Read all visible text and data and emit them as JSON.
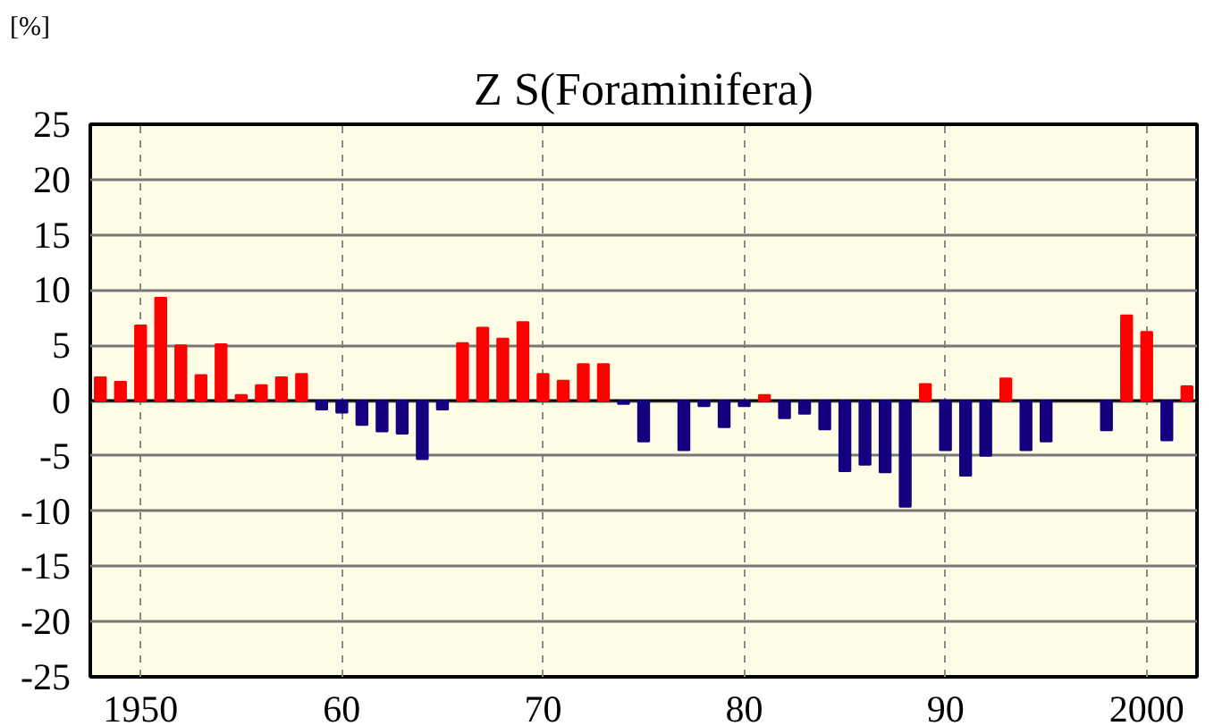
{
  "chart_data": {
    "type": "bar",
    "title": "Z S(Foraminifera)",
    "ylabel": "[%]",
    "x": [
      1948,
      1949,
      1950,
      1951,
      1952,
      1953,
      1954,
      1955,
      1956,
      1957,
      1958,
      1959,
      1960,
      1961,
      1962,
      1963,
      1964,
      1965,
      1966,
      1967,
      1968,
      1969,
      1970,
      1971,
      1972,
      1973,
      1974,
      1975,
      1976,
      1977,
      1978,
      1979,
      1980,
      1981,
      1982,
      1983,
      1984,
      1985,
      1986,
      1987,
      1988,
      1989,
      1990,
      1991,
      1992,
      1993,
      1994,
      1995,
      1996,
      1997,
      1998,
      1999,
      2000,
      2001,
      2002
    ],
    "values": [
      2.1,
      1.7,
      6.8,
      9.3,
      5.0,
      2.3,
      5.1,
      0.5,
      1.4,
      2.1,
      2.4,
      -0.8,
      -1.1,
      -2.2,
      -2.8,
      -3.0,
      -5.3,
      -0.8,
      5.2,
      6.6,
      5.6,
      7.1,
      2.4,
      1.8,
      3.3,
      3.3,
      -0.3,
      -3.7,
      null,
      -4.5,
      -0.5,
      -2.4,
      -0.5,
      0.5,
      -1.6,
      -1.2,
      -2.6,
      -6.4,
      -5.8,
      -6.5,
      -9.6,
      1.5,
      -4.5,
      -6.8,
      -5.0,
      2.0,
      -4.5,
      -3.7,
      null,
      null,
      -2.7,
      7.7,
      6.2,
      -3.6,
      1.3
    ],
    "colors": [
      "#ff0000",
      "#ff0000",
      "#ff0000",
      "#ff0000",
      "#ff0000",
      "#ff0000",
      "#ff0000",
      "#ff0000",
      "#ff0000",
      "#ff0000",
      "#ff0000",
      "#14007f",
      "#14007f",
      "#14007f",
      "#14007f",
      "#14007f",
      "#14007f",
      "#14007f",
      "#ff0000",
      "#ff0000",
      "#ff0000",
      "#ff0000",
      "#ff0000",
      "#ff0000",
      "#ff0000",
      "#ff0000",
      "#14007f",
      "#14007f",
      "#14007f",
      "#14007f",
      "#14007f",
      "#14007f",
      "#14007f",
      "#ff0000",
      "#14007f",
      "#14007f",
      "#14007f",
      "#14007f",
      "#14007f",
      "#14007f",
      "#14007f",
      "#ff0000",
      "#14007f",
      "#14007f",
      "#14007f",
      "#ff0000",
      "#14007f",
      "#14007f",
      "#14007f",
      "#14007f",
      "#14007f",
      "#ff0000",
      "#ff0000",
      "#14007f",
      "#ff0000"
    ],
    "xlim": [
      1947.5,
      2002.5
    ],
    "ylim": [
      -25,
      25
    ],
    "xticks": [
      1950,
      {
        "value": 1960,
        "label": "60"
      },
      {
        "value": 1970,
        "label": "70"
      },
      {
        "value": 1980,
        "label": "80"
      },
      {
        "value": 1990,
        "label": "90"
      },
      2000
    ],
    "yticks": [
      -25,
      -20,
      -15,
      -10,
      -5,
      0,
      5,
      10,
      15,
      20,
      25
    ],
    "grid": true
  }
}
